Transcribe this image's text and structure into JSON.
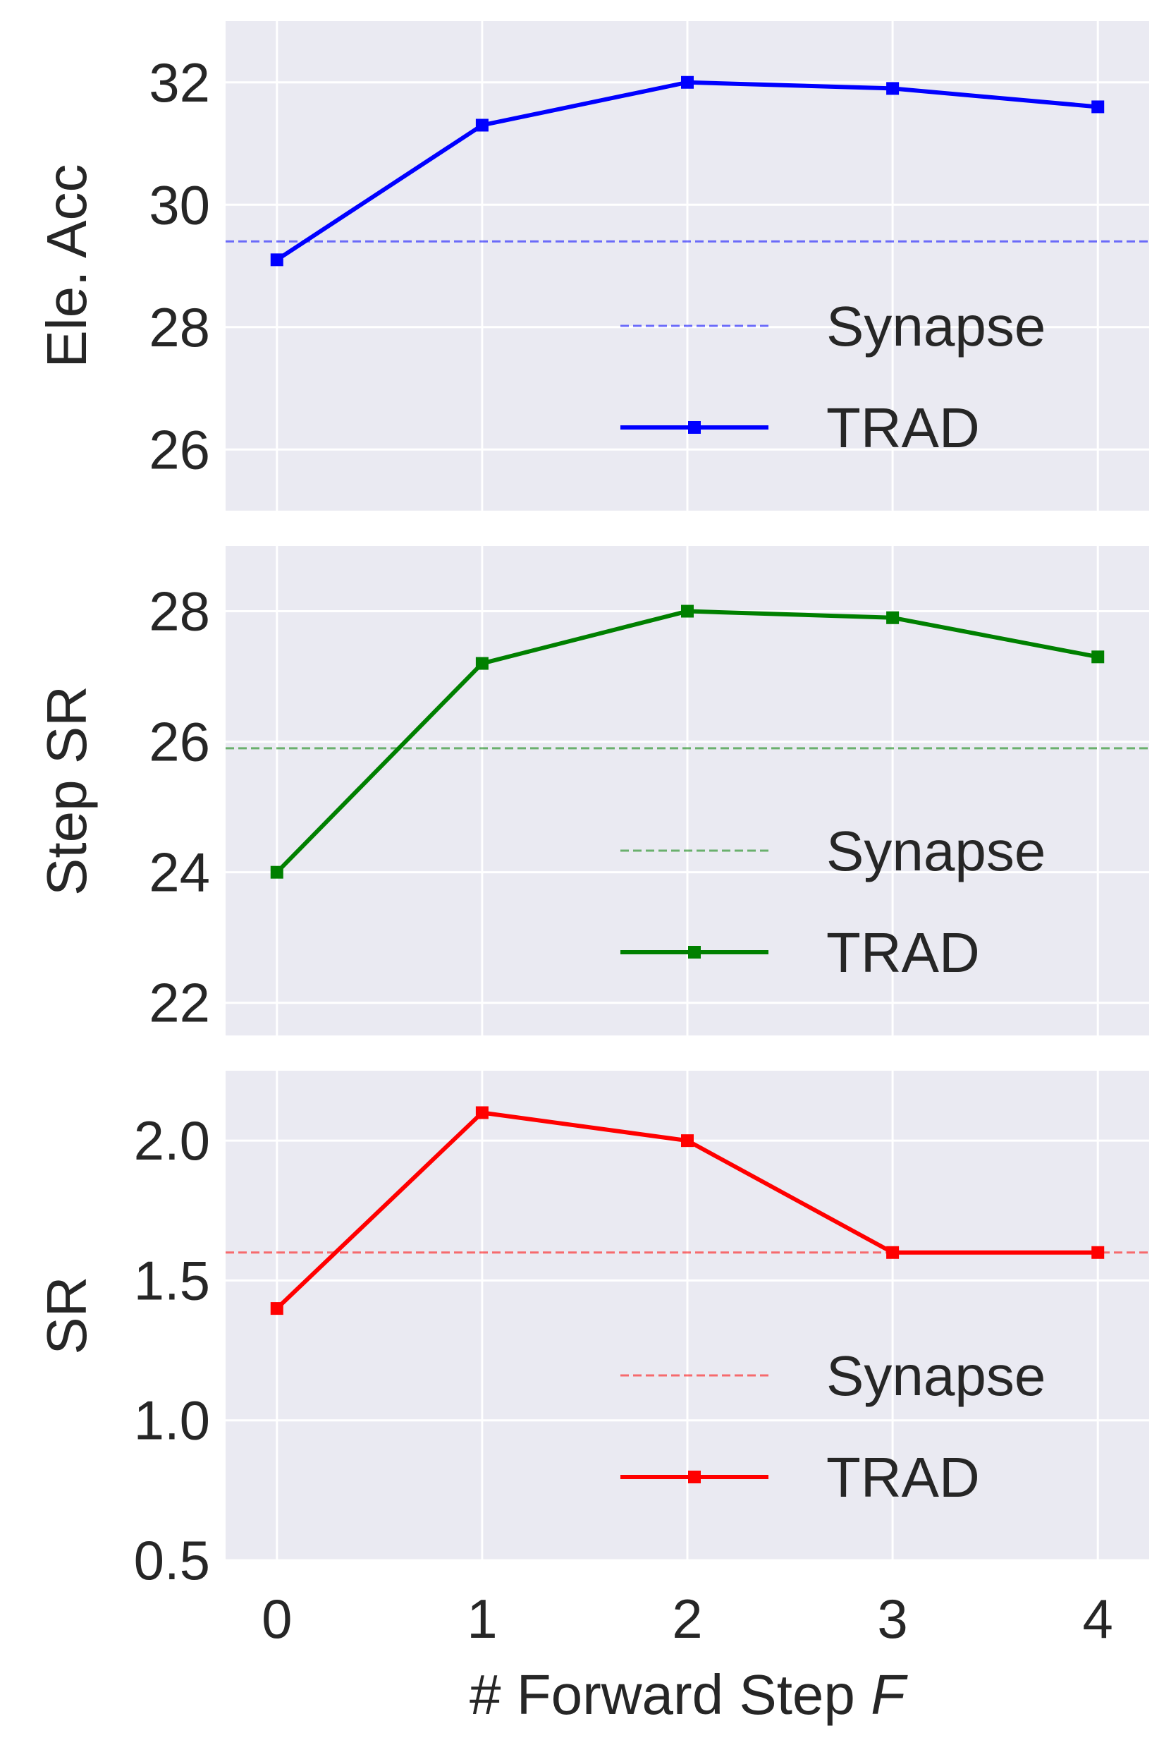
{
  "chart_data": [
    {
      "type": "line",
      "ylabel": "Ele. Acc",
      "xlabel": "",
      "x": [
        0,
        1,
        2,
        3,
        4
      ],
      "xlim": [
        -0.25,
        4.25
      ],
      "ylim": [
        25,
        33
      ],
      "yticks": [
        26,
        28,
        30,
        32
      ],
      "yticklabels": [
        "26",
        "28",
        "30",
        "32"
      ],
      "grid": true,
      "legend_position": "bottom-right",
      "color": "#0000ff",
      "baseline": {
        "name": "Synapse",
        "value": 29.4,
        "style": "dashed"
      },
      "series": [
        {
          "name": "TRAD",
          "values": [
            29.1,
            31.3,
            32.0,
            31.9,
            31.6
          ]
        }
      ]
    },
    {
      "type": "line",
      "ylabel": "Step SR",
      "xlabel": "",
      "x": [
        0,
        1,
        2,
        3,
        4
      ],
      "xlim": [
        -0.25,
        4.25
      ],
      "ylim": [
        21.5,
        29
      ],
      "yticks": [
        22,
        24,
        26,
        28
      ],
      "yticklabels": [
        "22",
        "24",
        "26",
        "28"
      ],
      "grid": true,
      "legend_position": "bottom-right",
      "color": "#008000",
      "baseline": {
        "name": "Synapse",
        "value": 25.9,
        "style": "dashed"
      },
      "series": [
        {
          "name": "TRAD",
          "values": [
            24.0,
            27.2,
            28.0,
            27.9,
            27.3
          ]
        }
      ]
    },
    {
      "type": "line",
      "ylabel": "SR",
      "xlabel_prefix": "# Forward Step ",
      "xlabel_var": "F",
      "x": [
        0,
        1,
        2,
        3,
        4
      ],
      "xticklabels": [
        "0",
        "1",
        "2",
        "3",
        "4"
      ],
      "xlim": [
        -0.25,
        4.25
      ],
      "ylim": [
        0.5,
        2.25
      ],
      "yticks": [
        0.5,
        1.0,
        1.5,
        2.0
      ],
      "yticklabels": [
        "0.5",
        "1.0",
        "1.5",
        "2.0"
      ],
      "grid": true,
      "legend_position": "bottom-right",
      "color": "#ff0000",
      "baseline": {
        "name": "Synapse",
        "value": 1.6,
        "style": "dashed"
      },
      "series": [
        {
          "name": "TRAD",
          "values": [
            1.4,
            2.1,
            2.0,
            1.6,
            1.6
          ]
        }
      ]
    }
  ]
}
